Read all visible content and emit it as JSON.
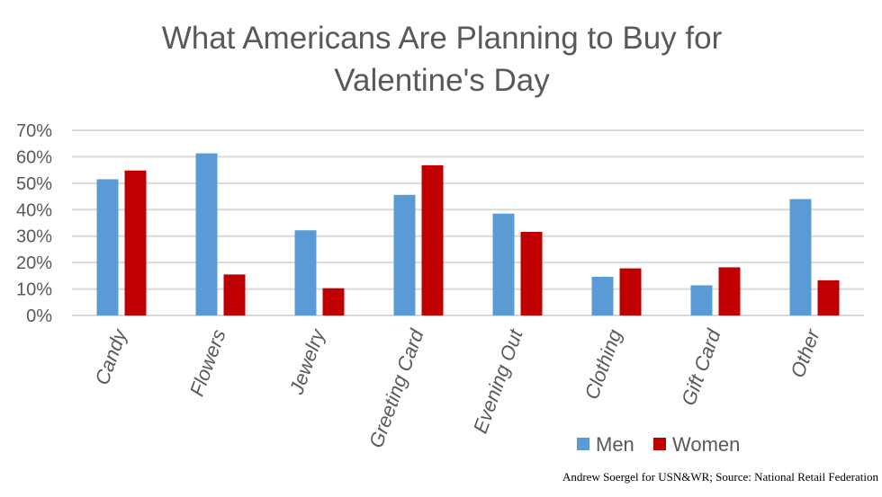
{
  "chart_data": {
    "type": "bar",
    "title_line1": "What Americans Are Planning to Buy for",
    "title_line2": "Valentine's Day",
    "categories": [
      "Candy",
      "Flowers",
      "Jewelry",
      "Greeting Card",
      "Evening Out",
      "Clothing",
      "Gift Card",
      "Other"
    ],
    "series": [
      {
        "name": "Men",
        "color": "#5b9bd5",
        "values": [
          51.5,
          61.3,
          32.2,
          45.6,
          38.5,
          14.6,
          11.4,
          44.0
        ]
      },
      {
        "name": "Women",
        "color": "#c00000",
        "values": [
          54.8,
          15.5,
          10.3,
          56.8,
          31.6,
          17.8,
          18.2,
          13.3
        ]
      }
    ],
    "yticks": [
      "0%",
      "10%",
      "20%",
      "30%",
      "40%",
      "50%",
      "60%",
      "70%"
    ],
    "ylim": [
      0,
      70
    ],
    "grid": true,
    "legend_position": "bottom-right",
    "credit": "Andrew Soergel for USN&WR; Source: National Retail Federation"
  }
}
